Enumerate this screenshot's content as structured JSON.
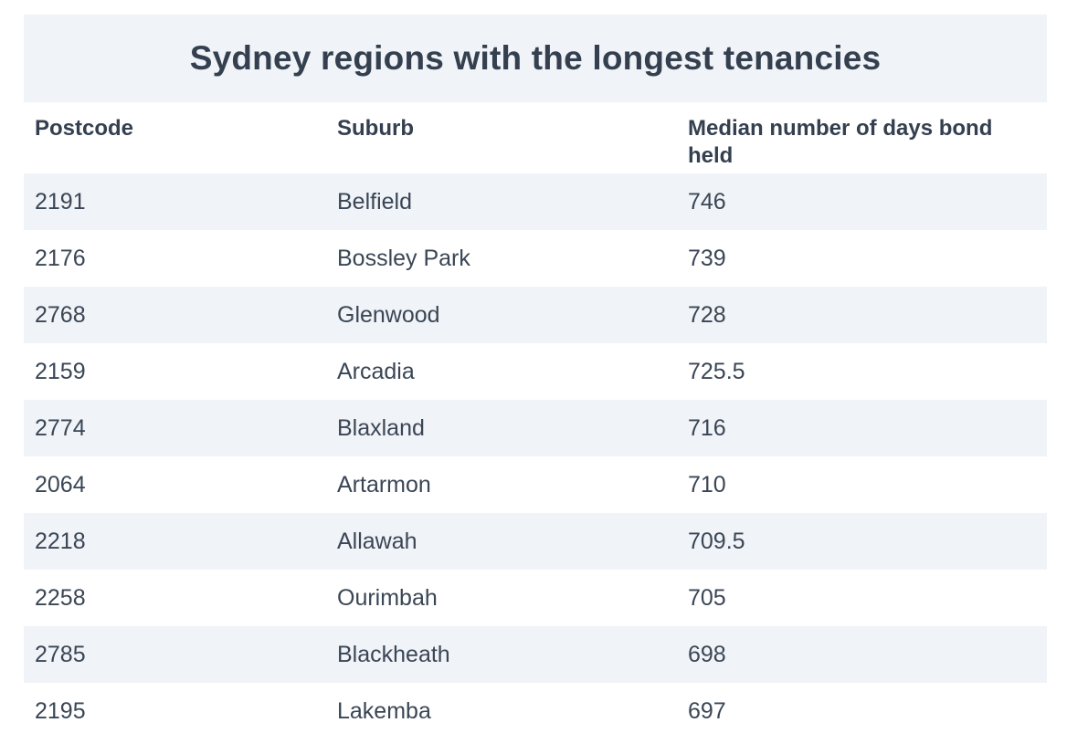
{
  "title": "Sydney regions with the longest tenancies",
  "columns": [
    "Postcode",
    "Suburb",
    "Median number of days bond held"
  ],
  "rows": [
    [
      "2191",
      "Belfield",
      "746"
    ],
    [
      "2176",
      "Bossley Park",
      "739"
    ],
    [
      "2768",
      "Glenwood",
      "728"
    ],
    [
      "2159",
      "Arcadia",
      "725.5"
    ],
    [
      "2774",
      "Blaxland",
      "716"
    ],
    [
      "2064",
      "Artarmon",
      "710"
    ],
    [
      "2218",
      "Allawah",
      "709.5"
    ],
    [
      "2258",
      "Ourimbah",
      "705"
    ],
    [
      "2785",
      "Blackheath",
      "698"
    ],
    [
      "2195",
      "Lakemba",
      "697"
    ]
  ],
  "colors": {
    "stripe": "#f0f3f7",
    "text": "#34404f"
  }
}
